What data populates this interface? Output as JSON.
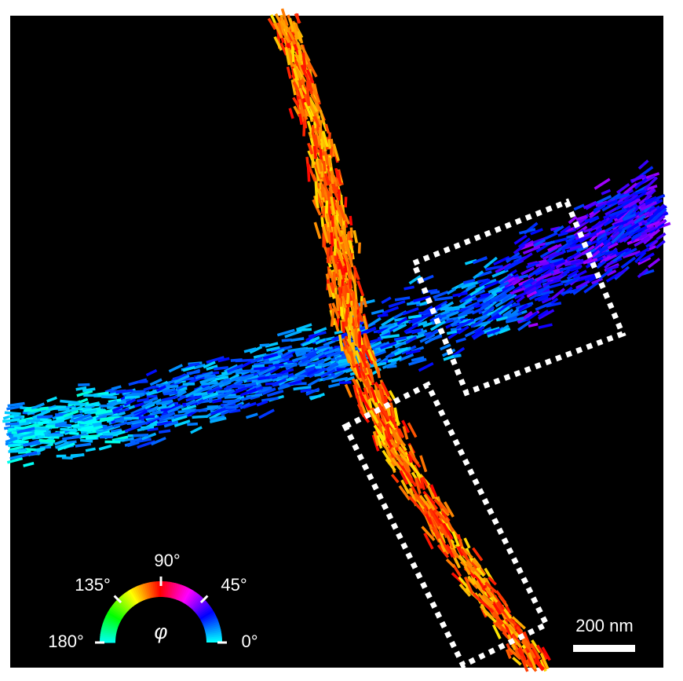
{
  "colorbar": {
    "ticks": [
      "0°",
      "45°",
      "90°",
      "135°",
      "180°"
    ],
    "symbol": "φ"
  },
  "scale_bar": {
    "label": "200 nm"
  }
}
